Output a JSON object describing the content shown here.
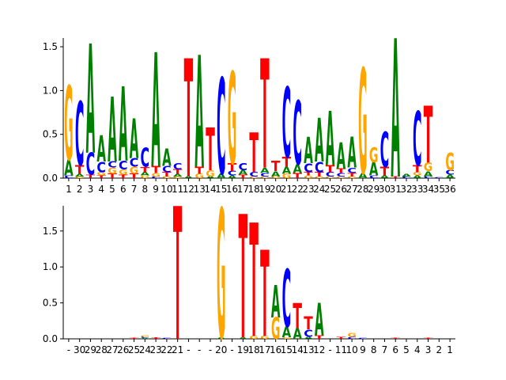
{
  "colors": {
    "A": "#008000",
    "C": "#0000ff",
    "G": "#ffa500",
    "T": "#ff0000"
  },
  "chart_data": [
    {
      "type": "sequence-logo",
      "title": "",
      "xlabel": "",
      "ylabel": "",
      "ylim": [
        0,
        1.6
      ],
      "yticks": [
        0.0,
        0.5,
        1.0,
        1.5
      ],
      "ytick_labels": [
        "0.0",
        "0.5",
        "1.0",
        "1.5"
      ],
      "x_labels": [
        "1",
        "2",
        "3",
        "4",
        "5",
        "6",
        "7",
        "8",
        "9",
        "10",
        "11",
        "12",
        "13",
        "14",
        "15",
        "16",
        "17",
        "18",
        "19",
        "20",
        "21",
        "22",
        "23",
        "24",
        "25",
        "26",
        "27",
        "28",
        "29",
        "30",
        "31",
        "32",
        "33",
        "34",
        "35",
        "36"
      ],
      "positions": [
        [
          [
            "G",
            0.85
          ],
          [
            "A",
            0.18
          ],
          [
            "C",
            0.03
          ]
        ],
        [
          [
            "C",
            0.73
          ],
          [
            "T",
            0.1
          ],
          [
            "A",
            0.03
          ],
          [
            "G",
            0.02
          ]
        ],
        [
          [
            "A",
            1.25
          ],
          [
            "C",
            0.25
          ],
          [
            "T",
            0.04
          ]
        ],
        [
          [
            "A",
            0.3
          ],
          [
            "C",
            0.12
          ],
          [
            "G",
            0.04
          ],
          [
            "T",
            0.03
          ]
        ],
        [
          [
            "A",
            0.74
          ],
          [
            "G",
            0.07
          ],
          [
            "C",
            0.07
          ],
          [
            "T",
            0.05
          ]
        ],
        [
          [
            "A",
            0.85
          ],
          [
            "C",
            0.1
          ],
          [
            "G",
            0.06
          ],
          [
            "T",
            0.04
          ]
        ],
        [
          [
            "A",
            0.45
          ],
          [
            "C",
            0.1
          ],
          [
            "G",
            0.08
          ],
          [
            "T",
            0.05
          ]
        ],
        [
          [
            "C",
            0.22
          ],
          [
            "T",
            0.06
          ],
          [
            "A",
            0.04
          ],
          [
            "G",
            0.03
          ]
        ],
        [
          [
            "A",
            1.3
          ],
          [
            "T",
            0.08
          ],
          [
            "G",
            0.04
          ],
          [
            "C",
            0.02
          ]
        ],
        [
          [
            "A",
            0.2
          ],
          [
            "C",
            0.07
          ],
          [
            "T",
            0.05
          ],
          [
            "G",
            0.02
          ]
        ],
        [
          [
            "C",
            0.07
          ],
          [
            "T",
            0.05
          ],
          [
            "A",
            0.03
          ],
          [
            "G",
            0.02
          ]
        ],
        [
          [
            "T",
            1.35
          ],
          [
            "A",
            0.02
          ]
        ],
        [
          [
            "A",
            1.28
          ],
          [
            "T",
            0.08
          ],
          [
            "G",
            0.05
          ]
        ],
        [
          [
            "T",
            0.49
          ],
          [
            "G",
            0.07
          ],
          [
            "A",
            0.02
          ]
        ],
        [
          [
            "C",
            1.1
          ],
          [
            "A",
            0.05
          ]
        ],
        [
          [
            "G",
            1.05
          ],
          [
            "T",
            0.09
          ],
          [
            "C",
            0.05
          ],
          [
            "A",
            0.03
          ]
        ],
        [
          [
            "C",
            0.08
          ],
          [
            "A",
            0.05
          ],
          [
            "T",
            0.04
          ]
        ],
        [
          [
            "T",
            0.45
          ],
          [
            "C",
            0.05
          ],
          [
            "G",
            0.02
          ]
        ],
        [
          [
            "T",
            1.25
          ],
          [
            "A",
            0.06
          ],
          [
            "C",
            0.04
          ],
          [
            "G",
            0.02
          ]
        ],
        [
          [
            "T",
            0.12
          ],
          [
            "A",
            0.06
          ],
          [
            "G",
            0.02
          ]
        ],
        [
          [
            "C",
            0.8
          ],
          [
            "T",
            0.11
          ],
          [
            "A",
            0.08
          ],
          [
            "G",
            0.05
          ]
        ],
        [
          [
            "C",
            0.73
          ],
          [
            "A",
            0.1
          ],
          [
            "T",
            0.06
          ]
        ],
        [
          [
            "A",
            0.3
          ],
          [
            "C",
            0.1
          ],
          [
            "T",
            0.04
          ],
          [
            "G",
            0.03
          ]
        ],
        [
          [
            "A",
            0.5
          ],
          [
            "C",
            0.12
          ],
          [
            "T",
            0.05
          ],
          [
            "G",
            0.02
          ]
        ],
        [
          [
            "A",
            0.62
          ],
          [
            "T",
            0.08
          ],
          [
            "C",
            0.05
          ],
          [
            "G",
            0.02
          ]
        ],
        [
          [
            "A",
            0.3
          ],
          [
            "T",
            0.05
          ],
          [
            "C",
            0.04
          ],
          [
            "G",
            0.02
          ]
        ],
        [
          [
            "A",
            0.35
          ],
          [
            "C",
            0.06
          ],
          [
            "T",
            0.04
          ],
          [
            "G",
            0.02
          ]
        ],
        [
          [
            "G",
            1.2
          ],
          [
            "A",
            0.06
          ]
        ],
        [
          [
            "G",
            0.17
          ],
          [
            "A",
            0.15
          ],
          [
            "C",
            0.03
          ]
        ],
        [
          [
            "C",
            0.4
          ],
          [
            "T",
            0.1
          ],
          [
            "A",
            0.03
          ]
        ],
        [
          [
            "A",
            1.58
          ],
          [
            "T",
            0.02
          ]
        ],
        [
          [
            "A",
            0.03
          ],
          [
            "C",
            0.02
          ]
        ],
        [
          [
            "C",
            0.62
          ],
          [
            "T",
            0.08
          ],
          [
            "G",
            0.04
          ],
          [
            "A",
            0.03
          ]
        ],
        [
          [
            "T",
            0.65
          ],
          [
            "G",
            0.1
          ],
          [
            "A",
            0.06
          ],
          [
            "C",
            0.02
          ]
        ],
        [
          [
            "C",
            0.01
          ]
        ],
        [
          [
            "G",
            0.2
          ],
          [
            "C",
            0.05
          ],
          [
            "A",
            0.04
          ]
        ]
      ]
    },
    {
      "type": "sequence-logo",
      "title": "",
      "xlabel": "",
      "ylabel": "",
      "ylim": [
        0,
        1.85
      ],
      "yticks": [
        0.0,
        0.5,
        1.0,
        1.5
      ],
      "ytick_labels": [
        "0.0",
        "0.5",
        "1.0",
        "1.5"
      ],
      "x_labels": [
        "-",
        "30",
        "29",
        "28",
        "27",
        "26",
        "25",
        "24",
        "23",
        "22",
        "21",
        "-",
        "-",
        "-",
        "20",
        "-",
        "19",
        "18",
        "17",
        "16",
        "15",
        "14",
        "13",
        "12",
        "-",
        "11",
        "10",
        "9",
        "8",
        "7",
        "6",
        "5",
        "4",
        "3",
        "2",
        "1"
      ],
      "positions": [
        [],
        [],
        [],
        [],
        [],
        [],
        [
          [
            "T",
            0.01
          ]
        ],
        [
          [
            "C",
            0.02
          ],
          [
            "G",
            0.02
          ],
          [
            "A",
            0.01
          ]
        ],
        [
          [
            "T",
            0.02
          ]
        ],
        [
          [
            "C",
            0.01
          ]
        ],
        [
          [
            "T",
            1.85
          ]
        ],
        [],
        [],
        [],
        [
          [
            "G",
            1.8
          ],
          [
            "A",
            0.02
          ]
        ],
        [],
        [
          [
            "T",
            1.72
          ],
          [
            "A",
            0.02
          ]
        ],
        [
          [
            "T",
            1.58
          ],
          [
            "G",
            0.04
          ]
        ],
        [
          [
            "T",
            1.2
          ],
          [
            "G",
            0.04
          ]
        ],
        [
          [
            "A",
            0.45
          ],
          [
            "G",
            0.3
          ]
        ],
        [
          [
            "C",
            0.8
          ],
          [
            "A",
            0.15
          ],
          [
            "G",
            0.02
          ]
        ],
        [
          [
            "T",
            0.35
          ],
          [
            "A",
            0.15
          ]
        ],
        [
          [
            "T",
            0.18
          ],
          [
            "C",
            0.1
          ],
          [
            "A",
            0.03
          ]
        ],
        [
          [
            "A",
            0.45
          ],
          [
            "T",
            0.05
          ]
        ],
        [],
        [
          [
            "T",
            0.03
          ]
        ],
        [
          [
            "G",
            0.06
          ],
          [
            "C",
            0.03
          ]
        ],
        [
          [
            "C",
            0.01
          ]
        ],
        [],
        [],
        [
          [
            "T",
            0.01
          ]
        ],
        [],
        [],
        [
          [
            "T",
            0.01
          ]
        ],
        [],
        []
      ]
    }
  ]
}
